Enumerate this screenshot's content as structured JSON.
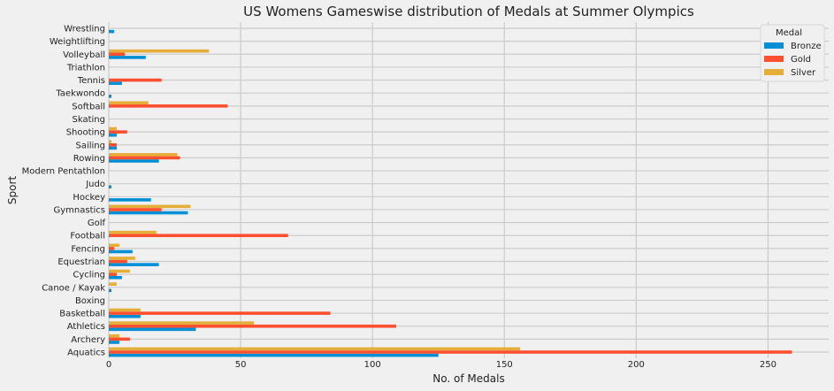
{
  "chart_data": {
    "type": "bar",
    "orientation": "horizontal",
    "title": "US Womens Gameswise distribution of Medals at Summer Olympics",
    "xlabel": "No. of Medals",
    "ylabel": "Sport",
    "xlim": [
      0,
      273
    ],
    "xticks": [
      0,
      50,
      100,
      150,
      200,
      250
    ],
    "grid": true,
    "legend": {
      "title": "Medal",
      "placement": "top-right"
    },
    "categories": [
      "Aquatics",
      "Archery",
      "Athletics",
      "Basketball",
      "Boxing",
      "Canoe / Kayak",
      "Cycling",
      "Equestrian",
      "Fencing",
      "Football",
      "Golf",
      "Gymnastics",
      "Hockey",
      "Judo",
      "Modern Pentathlon",
      "Rowing",
      "Sailing",
      "Shooting",
      "Skating",
      "Softball",
      "Taekwondo",
      "Tennis",
      "Triathlon",
      "Volleyball",
      "Weightlifting",
      "Wrestling"
    ],
    "series": [
      {
        "name": "Bronze",
        "color": "#008fd5",
        "values": [
          125,
          4,
          33,
          12,
          0,
          1,
          5,
          19,
          9,
          0,
          0,
          30,
          16,
          1,
          0,
          19,
          3,
          3,
          0,
          0,
          1,
          5,
          0,
          14,
          0,
          2
        ]
      },
      {
        "name": "Gold",
        "color": "#fc4f30",
        "values": [
          259,
          8,
          109,
          84,
          0,
          0,
          3,
          7,
          2,
          68,
          0,
          20,
          0,
          0,
          0,
          27,
          3,
          7,
          0,
          45,
          0,
          20,
          0,
          6,
          0,
          0
        ]
      },
      {
        "name": "Silver",
        "color": "#e5ae38",
        "values": [
          156,
          4,
          55,
          12,
          0,
          3,
          8,
          10,
          4,
          18,
          0,
          31,
          0,
          0,
          0,
          26,
          1,
          3,
          0,
          15,
          0,
          0,
          0,
          38,
          0,
          0
        ]
      }
    ]
  }
}
